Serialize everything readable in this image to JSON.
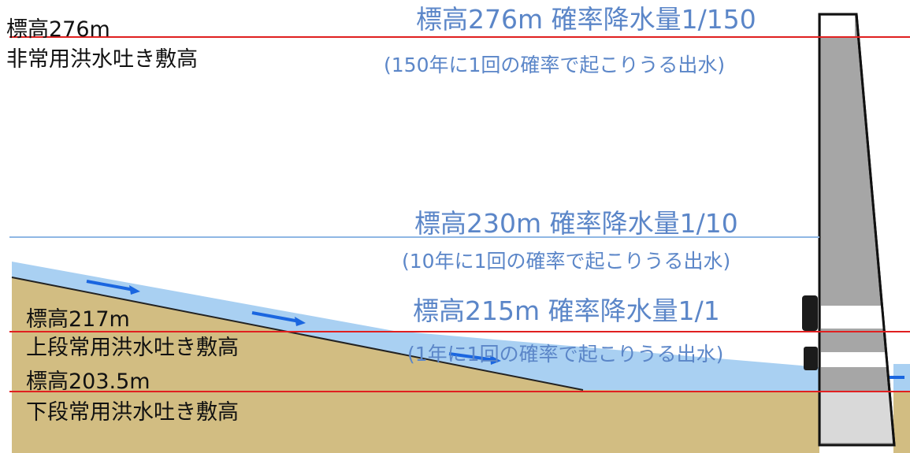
{
  "colors": {
    "water": "#a9d0f2",
    "ground": "#d2bd82",
    "line_red": "#e02020",
    "line_blue": "#8fb7e4",
    "arrow": "#1a66e0",
    "dam_gray": "#a6a6a6",
    "dam_light": "#d6d6d6",
    "text_blue": "#5b86c8",
    "text_dark": "#111111"
  },
  "left_labels": {
    "el276": "標高276m",
    "emergency_spillway": "非常用洪水吐き敷高",
    "el217": "標高217m",
    "upper_spillway": "上段常用洪水吐き敷高",
    "el203": "標高203.5m",
    "lower_spillway": "下段常用洪水吐き敷高"
  },
  "levels": [
    {
      "heading": "標高276m 確率降水量1/150",
      "sub": "(150年に1回の確率で起こりうる出水)"
    },
    {
      "heading": "標高230m 確率降水量1/10",
      "sub": "(10年に1回の確率で起こりうる出水)"
    },
    {
      "heading": "標高215m 確率降水量1/1",
      "sub": "(1年に1回の確率で起こりうる出水)"
    }
  ]
}
